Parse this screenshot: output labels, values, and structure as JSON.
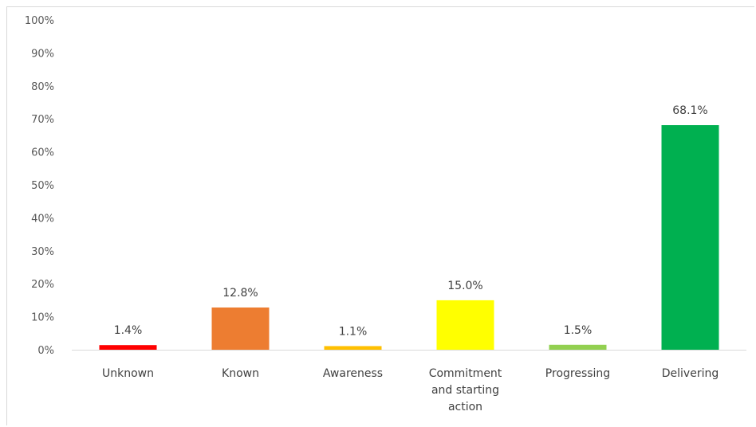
{
  "chart_data": {
    "type": "bar",
    "categories": [
      "Unknown",
      "Known",
      "Awareness",
      "Commitment and starting action",
      "Progressing",
      "Delivering"
    ],
    "category_lines": [
      [
        "Unknown"
      ],
      [
        "Known"
      ],
      [
        "Awareness"
      ],
      [
        "Commitment",
        "and starting",
        "action"
      ],
      [
        "Progressing"
      ],
      [
        "Delivering"
      ]
    ],
    "values": [
      1.4,
      12.8,
      1.1,
      15.0,
      1.5,
      68.1
    ],
    "data_labels": [
      "1.4%",
      "12.8%",
      "1.1%",
      "15.0%",
      "1.5%",
      "68.1%"
    ],
    "colors": [
      "#ff0000",
      "#ed7d31",
      "#ffc000",
      "#ffff00",
      "#92d050",
      "#00b050"
    ],
    "y_ticks": [
      0,
      10,
      20,
      30,
      40,
      50,
      60,
      70,
      80,
      90,
      100
    ],
    "y_tick_labels": [
      "0%",
      "10%",
      "20%",
      "30%",
      "40%",
      "50%",
      "60%",
      "70%",
      "80%",
      "90%",
      "100%"
    ],
    "ylim": [
      0,
      100
    ],
    "title": "",
    "xlabel": "",
    "ylabel": "",
    "grid": false,
    "legend": "none"
  }
}
